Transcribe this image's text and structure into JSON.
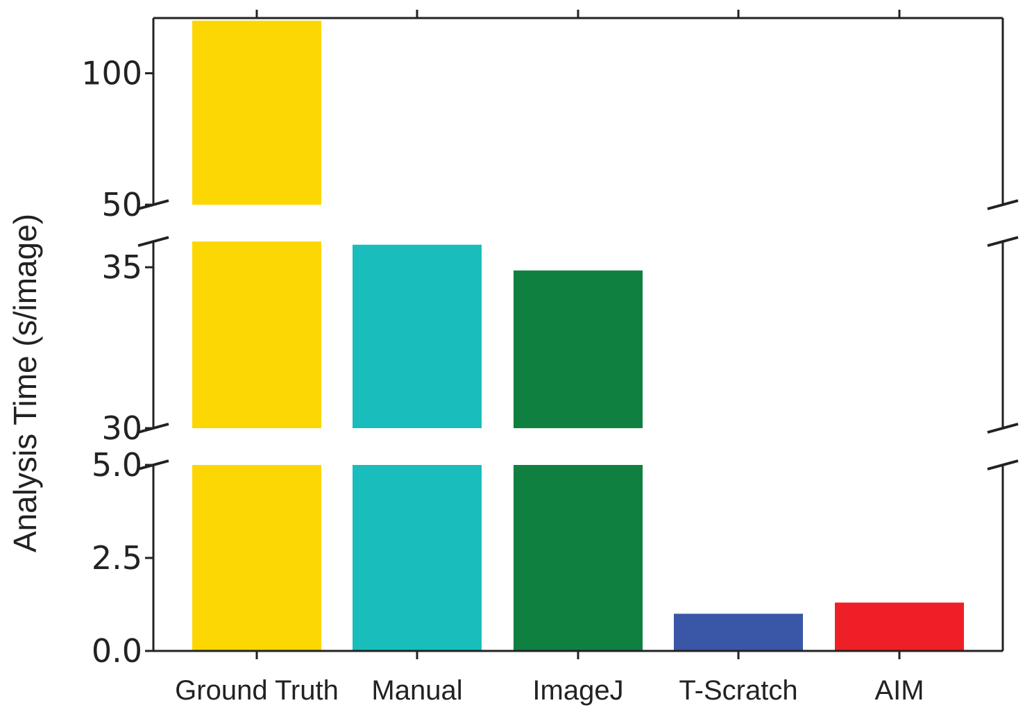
{
  "chart_data": {
    "type": "bar",
    "ylabel": "Analysis Time (s/image)",
    "xlabel": "",
    "title": "",
    "broken_axis": true,
    "categories": [
      "Ground Truth",
      "Manual",
      "ImageJ",
      "T-Scratch",
      "AIM"
    ],
    "values": [
      120,
      35.7,
      34.9,
      1.0,
      1.3
    ],
    "colors": [
      "#FCD704",
      "#19BDBC",
      "#108040",
      "#3A56A6",
      "#EF1F27"
    ],
    "segments": [
      {
        "ylim": [
          0,
          5.0
        ],
        "ticks": [
          "0.0",
          "2.5",
          "5.0"
        ],
        "tick_values": [
          0,
          2.5,
          5.0
        ]
      },
      {
        "ylim": [
          30,
          35.8
        ],
        "ticks": [
          "30",
          "35"
        ],
        "tick_values": [
          30,
          35
        ]
      },
      {
        "ylim": [
          50,
          121
        ],
        "ticks": [
          "50",
          "100"
        ],
        "tick_values": [
          50,
          100
        ]
      }
    ],
    "grid": false,
    "legend": "none"
  }
}
